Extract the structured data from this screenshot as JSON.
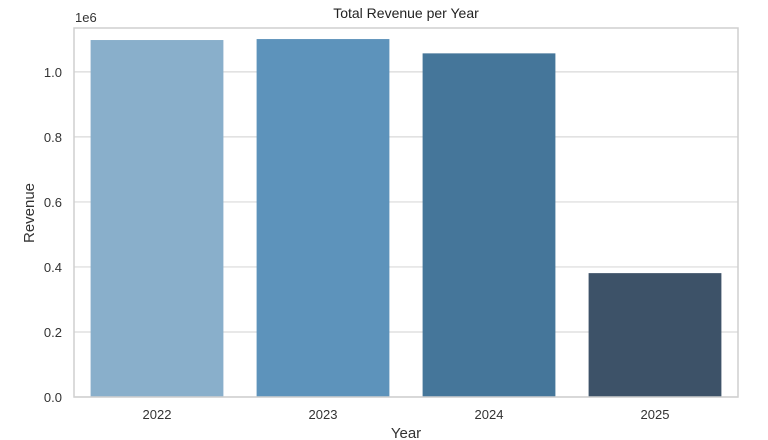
{
  "chart_data": {
    "type": "bar",
    "title": "Total Revenue per Year",
    "xlabel": "Year",
    "ylabel": "Revenue",
    "y_offset_label": "1e6",
    "categories": [
      "2022",
      "2023",
      "2024",
      "2025"
    ],
    "values": [
      1098000,
      1101000,
      1057000,
      381000
    ],
    "ylim": [
      0,
      1135000
    ],
    "yticks": [
      0,
      200000,
      400000,
      600000,
      800000,
      1000000
    ],
    "ytick_labels": [
      "0.0",
      "0.2",
      "0.4",
      "0.6",
      "0.8",
      "1.0"
    ],
    "grid": "horizontal",
    "colors": [
      "#89afcb",
      "#5d93bb",
      "#45769a",
      "#3d5268"
    ]
  }
}
